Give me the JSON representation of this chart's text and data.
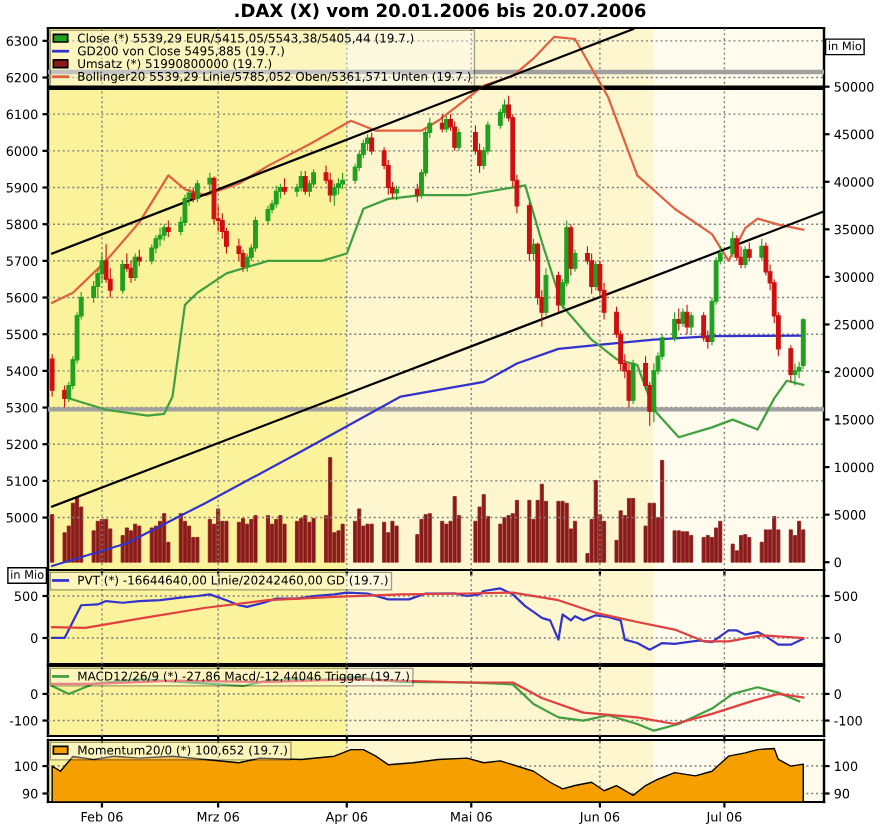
{
  "chart_data": [
    {
      "type": "candlestick",
      "title": ".DAX (X) vom 20.01.2006 bis 20.07.2006",
      "x": [
        "2006-01-20",
        "2006-01-23",
        "2006-01-24",
        "2006-01-25",
        "2006-01-26",
        "2006-01-27",
        "2006-01-30",
        "2006-01-31",
        "2006-02-01",
        "2006-02-02",
        "2006-02-03",
        "2006-02-06",
        "2006-02-07",
        "2006-02-08",
        "2006-02-09",
        "2006-02-10",
        "2006-02-13",
        "2006-02-14",
        "2006-02-15",
        "2006-02-16",
        "2006-02-17",
        "2006-02-20",
        "2006-02-21",
        "2006-02-22",
        "2006-02-23",
        "2006-02-24",
        "2006-02-27",
        "2006-02-28",
        "2006-03-01",
        "2006-03-02",
        "2006-03-03",
        "2006-03-06",
        "2006-03-07",
        "2006-03-08",
        "2006-03-09",
        "2006-03-10",
        "2006-03-13",
        "2006-03-14",
        "2006-03-15",
        "2006-03-16",
        "2006-03-17",
        "2006-03-20",
        "2006-03-21",
        "2006-03-22",
        "2006-03-23",
        "2006-03-24",
        "2006-03-27",
        "2006-03-28",
        "2006-03-29",
        "2006-03-30",
        "2006-03-31",
        "2006-04-03",
        "2006-04-04",
        "2006-04-05",
        "2006-04-06",
        "2006-04-07",
        "2006-04-10",
        "2006-04-11",
        "2006-04-12",
        "2006-04-13",
        "2006-04-18",
        "2006-04-19",
        "2006-04-20",
        "2006-04-21",
        "2006-04-24",
        "2006-04-25",
        "2006-04-26",
        "2006-04-27",
        "2006-04-28",
        "2006-05-02",
        "2006-05-03",
        "2006-05-04",
        "2006-05-05",
        "2006-05-08",
        "2006-05-09",
        "2006-05-10",
        "2006-05-11",
        "2006-05-12",
        "2006-05-15",
        "2006-05-16",
        "2006-05-17",
        "2006-05-18",
        "2006-05-19",
        "2006-05-22",
        "2006-05-23",
        "2006-05-24",
        "2006-05-25",
        "2006-05-26",
        "2006-05-29",
        "2006-05-30",
        "2006-05-31",
        "2006-06-01",
        "2006-06-02",
        "2006-06-05",
        "2006-06-06",
        "2006-06-07",
        "2006-06-08",
        "2006-06-09",
        "2006-06-12",
        "2006-06-13",
        "2006-06-14",
        "2006-06-15",
        "2006-06-16",
        "2006-06-19",
        "2006-06-20",
        "2006-06-21",
        "2006-06-22",
        "2006-06-23",
        "2006-06-26",
        "2006-06-27",
        "2006-06-28",
        "2006-06-29",
        "2006-06-30",
        "2006-07-03",
        "2006-07-04",
        "2006-07-05",
        "2006-07-06",
        "2006-07-07",
        "2006-07-10",
        "2006-07-11",
        "2006-07-12",
        "2006-07-13",
        "2006-07-14",
        "2006-07-17",
        "2006-07-18",
        "2006-07-19",
        "2006-07-20"
      ],
      "series": [
        {
          "type": "candlestick",
          "name": "Close (*) 5539,29 EUR/5415,05/5543,38/5405,44 (19.7.)",
          "color": "#1fa01f",
          "colors": [
            "#cc1010",
            "#cc1010",
            "#1fa01f",
            "#1fa01f",
            "#1fa01f",
            "#1fa01f",
            "#1fa01f",
            "#1fa01f",
            "#1fa01f",
            "#cc1010",
            "#cc1010",
            "#1fa01f",
            "#cc1010",
            "#cc1010",
            "#1fa01f",
            "#cc1010",
            "#1fa01f",
            "#1fa01f",
            "#1fa01f",
            "#1fa01f",
            "#cc1010",
            "#1fa01f",
            "#1fa01f",
            "#1fa01f",
            "#cc1010",
            "#1fa01f",
            "#1fa01f",
            "#cc1010",
            "#cc1010",
            "#cc1010",
            "#cc1010",
            "#cc1010",
            "#cc1010",
            "#1fa01f",
            "#1fa01f",
            "#1fa01f",
            "#1fa01f",
            "#1fa01f",
            "#1fa01f",
            "#1fa01f",
            "#cc1010",
            "#1fa01f",
            "#1fa01f",
            "#cc1010",
            "#1fa01f",
            "#1fa01f",
            "#cc1010",
            "#cc1010",
            "#1fa01f",
            "#1fa01f",
            "#1fa01f",
            "#1fa01f",
            "#1fa01f",
            "#1fa01f",
            "#1fa01f",
            "#cc1010",
            "#cc1010",
            "#cc1010",
            "#cc1010",
            "#1fa01f",
            "#cc1010",
            "#1fa01f",
            "#1fa01f",
            "#1fa01f",
            "#cc1010",
            "#1fa01f",
            "#cc1010",
            "#cc1010",
            "#1fa01f",
            "#cc1010",
            "#cc1010",
            "#1fa01f",
            "#1fa01f",
            "#1fa01f",
            "#1fa01f",
            "#cc1010",
            "#cc1010",
            "#cc1010",
            "#cc1010",
            "#1fa01f",
            "#cc1010",
            "#cc1010",
            "#1fa01f",
            "#cc1010",
            "#1fa01f",
            "#1fa01f",
            "#cc1010",
            "#1fa01f",
            "#cc1010",
            "#cc1010",
            "#1fa01f",
            "#cc1010",
            "#cc1010",
            "#cc1010",
            "#cc1010",
            "#cc1010",
            "#cc1010",
            "#1fa01f",
            "#cc1010",
            "#cc1010",
            "#1fa01f",
            "#1fa01f",
            "#1fa01f",
            "#1fa01f",
            "#cc1010",
            "#1fa01f",
            "#cc1010",
            "#1fa01f",
            "#cc1010",
            "#cc1010",
            "#1fa01f",
            "#1fa01f",
            "#1fa01f",
            "#1fa01f",
            "#cc1010",
            "#cc1010",
            "#1fa01f",
            "#cc1010",
            "#1fa01f",
            "#cc1010",
            "#cc1010",
            "#cc1010",
            "#cc1010",
            "#cc1010",
            "#1fa01f",
            "#1fa01f",
            "#1fa01f"
          ],
          "ohlc": [
            [
              5432,
              5445,
              5330,
              5347
            ],
            [
              5347,
              5360,
              5300,
              5325
            ],
            [
              5325,
              5370,
              5315,
              5360
            ],
            [
              5360,
              5440,
              5350,
              5430
            ],
            [
              5430,
              5560,
              5420,
              5550
            ],
            [
              5550,
              5615,
              5540,
              5600
            ],
            [
              5600,
              5645,
              5585,
              5630
            ],
            [
              5630,
              5680,
              5600,
              5665
            ],
            [
              5665,
              5720,
              5640,
              5700
            ],
            [
              5700,
              5745,
              5640,
              5650
            ],
            [
              5650,
              5680,
              5600,
              5620
            ],
            [
              5620,
              5700,
              5610,
              5690
            ],
            [
              5690,
              5720,
              5670,
              5680
            ],
            [
              5680,
              5700,
              5640,
              5655
            ],
            [
              5655,
              5720,
              5645,
              5710
            ],
            [
              5710,
              5730,
              5685,
              5700
            ],
            [
              5700,
              5745,
              5690,
              5735
            ],
            [
              5735,
              5770,
              5720,
              5760
            ],
            [
              5760,
              5790,
              5740,
              5770
            ],
            [
              5770,
              5800,
              5755,
              5790
            ],
            [
              5790,
              5810,
              5765,
              5780
            ],
            [
              5780,
              5820,
              5770,
              5805
            ],
            [
              5805,
              5880,
              5795,
              5870
            ],
            [
              5870,
              5895,
              5850,
              5885
            ],
            [
              5885,
              5900,
              5860,
              5870
            ],
            [
              5870,
              5920,
              5860,
              5910
            ],
            [
              5910,
              5940,
              5890,
              5925
            ],
            [
              5925,
              5930,
              5800,
              5815
            ],
            [
              5815,
              5850,
              5780,
              5810
            ],
            [
              5810,
              5830,
              5760,
              5780
            ],
            [
              5780,
              5790,
              5720,
              5740
            ],
            [
              5740,
              5760,
              5700,
              5720
            ],
            [
              5720,
              5730,
              5670,
              5685
            ],
            [
              5685,
              5720,
              5670,
              5710
            ],
            [
              5710,
              5745,
              5700,
              5735
            ],
            [
              5735,
              5820,
              5725,
              5810
            ],
            [
              5810,
              5850,
              5800,
              5840
            ],
            [
              5840,
              5865,
              5830,
              5855
            ],
            [
              5855,
              5905,
              5845,
              5890
            ],
            [
              5890,
              5910,
              5870,
              5900
            ],
            [
              5900,
              5925,
              5880,
              5890
            ],
            [
              5890,
              5910,
              5875,
              5900
            ],
            [
              5900,
              5945,
              5890,
              5930
            ],
            [
              5930,
              5945,
              5880,
              5890
            ],
            [
              5890,
              5920,
              5875,
              5910
            ],
            [
              5910,
              5950,
              5900,
              5940
            ],
            [
              5940,
              5960,
              5910,
              5920
            ],
            [
              5920,
              5940,
              5860,
              5880
            ],
            [
              5880,
              5910,
              5850,
              5900
            ],
            [
              5900,
              5925,
              5880,
              5910
            ],
            [
              5910,
              5940,
              5895,
              5920
            ],
            [
              5920,
              5965,
              5910,
              5955
            ],
            [
              5955,
              6000,
              5945,
              5990
            ],
            [
              5990,
              6030,
              5980,
              6020
            ],
            [
              6020,
              6045,
              6000,
              6035
            ],
            [
              6035,
              6050,
              5990,
              6000
            ],
            [
              6000,
              6010,
              5950,
              5960
            ],
            [
              5960,
              5975,
              5880,
              5900
            ],
            [
              5900,
              5915,
              5870,
              5885
            ],
            [
              5885,
              5905,
              5865,
              5895
            ],
            [
              5895,
              5910,
              5860,
              5880
            ],
            [
              5880,
              5950,
              5870,
              5940
            ],
            [
              5940,
              6060,
              5930,
              6050
            ],
            [
              6050,
              6090,
              6035,
              6075
            ],
            [
              6075,
              6100,
              6050,
              6060
            ],
            [
              6060,
              6095,
              6050,
              6085
            ],
            [
              6085,
              6100,
              6055,
              6065
            ],
            [
              6065,
              6080,
              6000,
              6010
            ],
            [
              6010,
              6060,
              6000,
              6050
            ],
            [
              6050,
              6070,
              5990,
              6000
            ],
            [
              6000,
              6020,
              5940,
              5960
            ],
            [
              5960,
              6010,
              5950,
              6000
            ],
            [
              6000,
              6080,
              5990,
              6070
            ],
            [
              6070,
              6115,
              6060,
              6105
            ],
            [
              6105,
              6140,
              6090,
              6125
            ],
            [
              6125,
              6150,
              6080,
              6090
            ],
            [
              6090,
              6100,
              5900,
              5920
            ],
            [
              5920,
              5935,
              5830,
              5850
            ],
            [
              5850,
              5860,
              5700,
              5720
            ],
            [
              5720,
              5760,
              5700,
              5745
            ],
            [
              5745,
              5750,
              5580,
              5600
            ],
            [
              5600,
              5620,
              5520,
              5560
            ],
            [
              5560,
              5680,
              5550,
              5660
            ],
            [
              5660,
              5670,
              5560,
              5580
            ],
            [
              5580,
              5650,
              5570,
              5640
            ],
            [
              5640,
              5810,
              5630,
              5790
            ],
            [
              5790,
              5800,
              5660,
              5680
            ],
            [
              5680,
              5730,
              5670,
              5720
            ],
            [
              5720,
              5740,
              5690,
              5700
            ],
            [
              5700,
              5720,
              5610,
              5630
            ],
            [
              5630,
              5700,
              5620,
              5690
            ],
            [
              5690,
              5700,
              5600,
              5620
            ],
            [
              5620,
              5640,
              5540,
              5560
            ],
            [
              5560,
              5575,
              5490,
              5500
            ],
            [
              5500,
              5510,
              5400,
              5420
            ],
            [
              5420,
              5445,
              5380,
              5400
            ],
            [
              5400,
              5420,
              5300,
              5320
            ],
            [
              5320,
              5430,
              5310,
              5420
            ],
            [
              5420,
              5440,
              5350,
              5360
            ],
            [
              5360,
              5370,
              5250,
              5290
            ],
            [
              5290,
              5420,
              5260,
              5400
            ],
            [
              5400,
              5450,
              5390,
              5440
            ],
            [
              5440,
              5500,
              5430,
              5490
            ],
            [
              5490,
              5560,
              5480,
              5540
            ],
            [
              5540,
              5570,
              5510,
              5530
            ],
            [
              5530,
              5570,
              5520,
              5560
            ],
            [
              5560,
              5580,
              5500,
              5520
            ],
            [
              5520,
              5560,
              5500,
              5550
            ],
            [
              5550,
              5560,
              5480,
              5490
            ],
            [
              5490,
              5510,
              5460,
              5480
            ],
            [
              5480,
              5600,
              5470,
              5590
            ],
            [
              5590,
              5710,
              5580,
              5700
            ],
            [
              5700,
              5740,
              5690,
              5720
            ],
            [
              5720,
              5780,
              5710,
              5760
            ],
            [
              5760,
              5770,
              5700,
              5710
            ],
            [
              5710,
              5740,
              5680,
              5690
            ],
            [
              5690,
              5740,
              5680,
              5730
            ],
            [
              5730,
              5750,
              5700,
              5710
            ],
            [
              5710,
              5760,
              5700,
              5740
            ],
            [
              5740,
              5750,
              5660,
              5670
            ],
            [
              5670,
              5690,
              5620,
              5640
            ],
            [
              5640,
              5650,
              5530,
              5550
            ],
            [
              5550,
              5560,
              5440,
              5460
            ],
            [
              5460,
              5470,
              5370,
              5390
            ],
            [
              5390,
              5420,
              5360,
              5400
            ],
            [
              5400,
              5425,
              5380,
              5410
            ],
            [
              5415.05,
              5543.38,
              5405.44,
              5539.29
            ]
          ]
        },
        {
          "type": "line",
          "name": "GD200 von Close 5495,885 (19.7.)",
          "color": "#3333cc",
          "x": [
            "2006-01-20",
            "2006-02-07",
            "2006-02-26",
            "2006-03-21",
            "2006-04-14",
            "2006-05-04",
            "2006-05-12",
            "2006-05-22",
            "2006-05-31",
            "2006-06-14",
            "2006-06-28",
            "2006-07-20"
          ],
          "values": [
            4868,
            4930,
            5040,
            5180,
            5330,
            5370,
            5420,
            5460,
            5470,
            5485,
            5495,
            5496
          ]
        },
        {
          "type": "bar",
          "name": "Umsatz (*) 51990800000 (19.7.)",
          "color": "#8b1a1a",
          "axis": "y2",
          "values": [
            5000,
            3100,
            3800,
            6200,
            6800,
            5800,
            3300,
            4300,
            4500,
            4500,
            3500,
            2800,
            3600,
            3300,
            4000,
            3800,
            3600,
            3800,
            4300,
            5100,
            2100,
            5100,
            4300,
            3800,
            2600,
            2600,
            4500,
            4000,
            5600,
            4300,
            4300,
            4200,
            4600,
            4000,
            4500,
            4900,
            4900,
            4000,
            4500,
            4900,
            4000,
            4300,
            4600,
            4900,
            4200,
            4600,
            4900,
            11000,
            3100,
            3300,
            4000,
            4300,
            5600,
            3800,
            4000,
            4000,
            4200,
            3100,
            4300,
            3800,
            2900,
            4500,
            5000,
            5100,
            4300,
            4000,
            4300,
            6900,
            4900,
            4300,
            5800,
            7100,
            4800,
            4000,
            4700,
            4900,
            5100,
            6500,
            6500,
            4500,
            6500,
            8200,
            6400,
            6400,
            6400,
            6200,
            3500,
            4300,
            900,
            4500,
            8600,
            5000,
            4300,
            2300,
            5400,
            4900,
            6700,
            6700,
            3800,
            6200,
            6200,
            4700,
            10700,
            3300,
            3300,
            3200,
            3200,
            2800,
            2600,
            2800,
            2600,
            3600,
            4300,
            1900,
            1200,
            2800,
            2900,
            2600,
            2100,
            3400,
            3400,
            4800,
            3400,
            3400,
            2800,
            4300,
            3400
          ]
        },
        {
          "type": "line",
          "name": "Bollinger20 5539,29 Linie/5785,052 Oben/5361,571 Unten (19.7.)",
          "color": "#e06040",
          "x": [
            "2006-01-20",
            "2006-01-25",
            "2006-02-02",
            "2006-02-10",
            "2006-02-17",
            "2006-02-21",
            "2006-02-26",
            "2006-03-06",
            "2006-03-13",
            "2006-03-23",
            "2006-04-02",
            "2006-04-08",
            "2006-04-19",
            "2006-04-23",
            "2006-05-04",
            "2006-05-11",
            "2006-05-16",
            "2006-05-21",
            "2006-05-26",
            "2006-06-03",
            "2006-06-10",
            "2006-06-19",
            "2006-06-28",
            "2006-07-02",
            "2006-07-06",
            "2006-07-09",
            "2006-07-14",
            "2006-07-20"
          ],
          "values": [
            5586,
            5613,
            5700,
            5805,
            5933,
            5895,
            5879,
            5911,
            5959,
            6018,
            6082,
            6055,
            6055,
            6082,
            6178,
            6204,
            6252,
            6311,
            6305,
            6146,
            5933,
            5842,
            5773,
            5700,
            5789,
            5815,
            5799,
            5785
          ]
        },
        {
          "type": "line",
          "color": "#40a040",
          "x": [
            "2006-01-24",
            "2006-02-02",
            "2006-02-12",
            "2006-02-16",
            "2006-02-18",
            "2006-02-21",
            "2006-02-24",
            "2006-03-03",
            "2006-03-13",
            "2006-03-26",
            "2006-04-01",
            "2006-04-05",
            "2006-04-11",
            "2006-04-19",
            "2006-04-30",
            "2006-05-14",
            "2006-05-18",
            "2006-05-23",
            "2006-05-30",
            "2006-06-05",
            "2006-06-10",
            "2006-06-14",
            "2006-06-20",
            "2006-06-28",
            "2006-07-03",
            "2006-07-09",
            "2006-07-13",
            "2006-07-16",
            "2006-07-20"
          ],
          "values": [
            5325,
            5294,
            5278,
            5283,
            5330,
            5580,
            5613,
            5666,
            5700,
            5700,
            5720,
            5842,
            5869,
            5879,
            5879,
            5906,
            5752,
            5576,
            5485,
            5432,
            5416,
            5294,
            5219,
            5246,
            5267,
            5240,
            5325,
            5373,
            5362
          ]
        },
        {
          "type": "line",
          "color": "#000000",
          "x": [
            "2006-01-20",
            "2006-06-09"
          ],
          "values": [
            5720,
            6332
          ]
        },
        {
          "type": "line",
          "color": "#000000",
          "x": [
            "2006-01-20",
            "2006-07-25"
          ],
          "values": [
            5030,
            5835
          ]
        }
      ],
      "xlim": [
        "2006-01-19",
        "2006-07-25"
      ],
      "xticks": [
        {
          "value": "2006-02-01",
          "label": null
        },
        {
          "value": "2006-03-01",
          "label": null
        },
        {
          "value": "2006-04-01",
          "label": null
        },
        {
          "value": "2006-05-01",
          "label": null
        },
        {
          "value": "2006-06-01",
          "label": null
        },
        {
          "value": "2006-07-01",
          "label": null
        }
      ],
      "ylim": [
        4857,
        6335
      ],
      "yticks": [
        5000,
        5100,
        5200,
        5300,
        5400,
        5500,
        5600,
        5700,
        5800,
        5900,
        6000,
        6100,
        6200,
        6300
      ],
      "y2lim": [
        -820,
        56170
      ],
      "y2ticks": [
        0,
        5000,
        10000,
        15000,
        20000,
        25000,
        30000,
        35000,
        40000,
        45000,
        50000
      ],
      "y2label": "in Mio",
      "tick_labels": "y",
      "grid": true,
      "legend": "top left",
      "ref_lines": [
        {
          "axis": "y",
          "value": 6215,
          "color": "#a0a0a0"
        },
        {
          "axis": "y",
          "value": 6172,
          "color": "#000000"
        },
        {
          "axis": "y",
          "value": 5295,
          "color": "#a0a0a0"
        }
      ],
      "bands": [
        {
          "axis": "x",
          "from": "2006-01-19",
          "to": "2006-04-01",
          "color": "#fbf29c"
        },
        {
          "axis": "x",
          "from": "2006-04-01",
          "to": "2006-06-14",
          "color": "#fdf6cf"
        },
        {
          "axis": "x",
          "from": "2006-06-14",
          "to": "2006-07-25",
          "color": "#fffcee"
        }
      ]
    },
    {
      "type": "line",
      "ylabel": "in Mio",
      "series": [
        {
          "name": "PVT (*) -16644640,00 Linie/20242460,00 GD (19.7.)",
          "color": "#3333cc",
          "x": [
            "2006-01-20",
            "2006-01-23",
            "2006-01-27",
            "2006-01-31",
            "2006-02-02",
            "2006-02-06",
            "2006-02-10",
            "2006-02-15",
            "2006-02-20",
            "2006-02-24",
            "2006-02-27",
            "2006-03-03",
            "2006-03-06",
            "2006-03-08",
            "2006-03-12",
            "2006-03-15",
            "2006-03-20",
            "2006-03-24",
            "2006-03-29",
            "2006-04-01",
            "2006-04-06",
            "2006-04-11",
            "2006-04-16",
            "2006-04-20",
            "2006-04-27",
            "2006-04-30",
            "2006-05-03",
            "2006-05-04",
            "2006-05-08",
            "2006-05-11",
            "2006-05-14",
            "2006-05-16",
            "2006-05-18",
            "2006-05-20",
            "2006-05-22",
            "2006-05-23",
            "2006-05-25",
            "2006-05-26",
            "2006-05-28",
            "2006-05-31",
            "2006-06-03",
            "2006-06-06",
            "2006-06-07",
            "2006-06-10",
            "2006-06-13",
            "2006-06-16",
            "2006-06-19",
            "2006-06-22",
            "2006-06-25",
            "2006-06-28",
            "2006-07-02",
            "2006-07-04",
            "2006-07-06",
            "2006-07-09",
            "2006-07-11",
            "2006-07-14",
            "2006-07-17",
            "2006-07-20"
          ],
          "values": [
            0,
            0,
            390,
            400,
            440,
            420,
            440,
            450,
            480,
            500,
            520,
            450,
            390,
            370,
            420,
            470,
            470,
            500,
            520,
            540,
            530,
            460,
            460,
            530,
            530,
            500,
            520,
            560,
            590,
            520,
            380,
            310,
            240,
            210,
            -20,
            280,
            210,
            260,
            210,
            270,
            250,
            210,
            -20,
            -60,
            -140,
            -60,
            -70,
            -50,
            -30,
            -50,
            90,
            90,
            40,
            70,
            20,
            -80,
            -80,
            -10
          ]
        },
        {
          "color": "#e04040",
          "x": [
            "2006-01-20",
            "2006-01-28",
            "2006-02-10",
            "2006-02-26",
            "2006-03-13",
            "2006-03-29",
            "2006-04-14",
            "2006-04-30",
            "2006-05-11",
            "2006-05-22",
            "2006-05-31",
            "2006-06-10",
            "2006-06-19",
            "2006-06-26",
            "2006-07-02",
            "2006-07-10",
            "2006-07-20"
          ],
          "values": [
            130,
            120,
            230,
            360,
            450,
            490,
            520,
            530,
            540,
            450,
            300,
            190,
            100,
            -40,
            -40,
            30,
            0
          ]
        }
      ],
      "xlim": [
        "2006-01-19",
        "2006-07-25"
      ],
      "xticks": [
        {
          "value": "2006-02-01",
          "label": null
        },
        {
          "value": "2006-03-01",
          "label": null
        },
        {
          "value": "2006-04-01",
          "label": null
        },
        {
          "value": "2006-05-01",
          "label": null
        },
        {
          "value": "2006-06-01",
          "label": null
        },
        {
          "value": "2006-07-01",
          "label": null
        }
      ],
      "ylim": [
        -310,
        810
      ],
      "yticks": [
        0,
        500
      ],
      "y2lim": [
        -310,
        810
      ],
      "y2ticks": [
        0,
        500
      ],
      "tick_labels": "y",
      "grid": true,
      "legend": "top left",
      "bands": [
        {
          "axis": "x",
          "from": "2006-01-19",
          "to": "2006-04-01",
          "color": "#fbf29c"
        },
        {
          "axis": "x",
          "from": "2006-04-01",
          "to": "2006-06-14",
          "color": "#fdf6cf"
        },
        {
          "axis": "x",
          "from": "2006-06-14",
          "to": "2006-07-25",
          "color": "#fffcee"
        }
      ]
    },
    {
      "type": "line",
      "series": [
        {
          "name": "MACD12/26/9 (*) -27,86 Macd/-12,44046 Trigger (19.7.)",
          "color": "#40a040",
          "x": [
            "2006-01-20",
            "2006-01-24",
            "2006-01-30",
            "2006-02-10",
            "2006-03-07",
            "2006-03-13",
            "2006-03-29",
            "2006-04-02",
            "2006-04-14",
            "2006-04-30",
            "2006-05-11",
            "2006-05-16",
            "2006-05-22",
            "2006-05-28",
            "2006-06-03",
            "2006-06-10",
            "2006-06-14",
            "2006-06-20",
            "2006-06-28",
            "2006-07-03",
            "2006-07-09",
            "2006-07-14",
            "2006-07-19"
          ],
          "values": [
            30,
            0,
            38,
            55,
            30,
            50,
            55,
            63,
            45,
            43,
            36,
            -38,
            -88,
            -100,
            -80,
            -113,
            -138,
            -113,
            -55,
            0,
            25,
            5,
            -28
          ]
        },
        {
          "color": "#e04040",
          "x": [
            "2006-01-20",
            "2006-01-30",
            "2006-02-18",
            "2006-03-13",
            "2006-04-02",
            "2006-04-30",
            "2006-05-11",
            "2006-05-18",
            "2006-05-28",
            "2006-06-10",
            "2006-06-19",
            "2006-06-28",
            "2006-07-08",
            "2006-07-14",
            "2006-07-20"
          ],
          "values": [
            38,
            38,
            50,
            45,
            55,
            43,
            43,
            -15,
            -70,
            -88,
            -113,
            -75,
            -25,
            0,
            -13
          ]
        }
      ],
      "xlim": [
        "2006-01-19",
        "2006-07-25"
      ],
      "xticks": [
        {
          "value": "2006-02-01",
          "label": null
        },
        {
          "value": "2006-03-01",
          "label": null
        },
        {
          "value": "2006-04-01",
          "label": null
        },
        {
          "value": "2006-05-01",
          "label": null
        },
        {
          "value": "2006-06-01",
          "label": null
        },
        {
          "value": "2006-07-01",
          "label": null
        }
      ],
      "ylim": [
        -158,
        105
      ],
      "yticks": [
        -100,
        0
      ],
      "y2lim": [
        -158,
        105
      ],
      "y2ticks": [
        -100,
        0
      ],
      "tick_labels": "y",
      "grid": true,
      "legend": "top left",
      "bands": [
        {
          "axis": "x",
          "from": "2006-01-19",
          "to": "2006-04-01",
          "color": "#fbf29c"
        },
        {
          "axis": "x",
          "from": "2006-04-01",
          "to": "2006-06-14",
          "color": "#fdf6cf"
        },
        {
          "axis": "x",
          "from": "2006-06-14",
          "to": "2006-07-25",
          "color": "#fffcee"
        }
      ]
    },
    {
      "type": "area",
      "series": [
        {
          "name": "Momentum20/0 (*) 100,652 (19.7.)",
          "color": "#f5a000",
          "x": [
            "2006-01-20",
            "2006-01-22",
            "2006-01-25",
            "2006-01-30",
            "2006-02-04",
            "2006-02-10",
            "2006-02-18",
            "2006-02-26",
            "2006-03-06",
            "2006-03-11",
            "2006-03-21",
            "2006-03-29",
            "2006-04-02",
            "2006-04-05",
            "2006-04-08",
            "2006-04-11",
            "2006-04-17",
            "2006-04-23",
            "2006-04-30",
            "2006-05-04",
            "2006-05-08",
            "2006-05-16",
            "2006-05-20",
            "2006-05-23",
            "2006-05-26",
            "2006-05-30",
            "2006-06-02",
            "2006-06-05",
            "2006-06-09",
            "2006-06-12",
            "2006-06-15",
            "2006-06-19",
            "2006-06-24",
            "2006-06-28",
            "2006-07-02",
            "2006-07-06",
            "2006-07-09",
            "2006-07-13",
            "2006-07-14",
            "2006-07-17",
            "2006-07-20"
          ],
          "values": [
            100,
            98.1,
            103.5,
            102.4,
            103.6,
            102.9,
            103.6,
            102.4,
            101.2,
            102.9,
            102.4,
            103.6,
            106,
            106,
            103.6,
            100.5,
            101.2,
            102.4,
            102.9,
            101.2,
            101.9,
            98.1,
            94.1,
            91.7,
            92.9,
            94.1,
            91,
            92.9,
            89.3,
            92.9,
            95.2,
            97.6,
            96.4,
            98.1,
            103.6,
            104.8,
            106,
            106.4,
            102.4,
            100,
            100.7
          ]
        }
      ],
      "xlim": [
        "2006-01-19",
        "2006-07-25"
      ],
      "xticks": [
        {
          "value": "2006-02-01",
          "label": "Feb 06"
        },
        {
          "value": "2006-03-01",
          "label": "Mrz 06"
        },
        {
          "value": "2006-04-01",
          "label": "Apr 06"
        },
        {
          "value": "2006-05-01",
          "label": "Mai 06"
        },
        {
          "value": "2006-06-01",
          "label": "Jun 06"
        },
        {
          "value": "2006-07-01",
          "label": "Jul 06"
        }
      ],
      "ylim": [
        86.9,
        109.5
      ],
      "yticks": [
        90,
        100
      ],
      "y2lim": [
        86.9,
        109.5
      ],
      "y2ticks": [
        90,
        100
      ],
      "grid": true,
      "legend": "top left",
      "bands": [
        {
          "axis": "x",
          "from": "2006-01-19",
          "to": "2006-04-01",
          "color": "#fbf29c"
        },
        {
          "axis": "x",
          "from": "2006-04-01",
          "to": "2006-06-14",
          "color": "#fdf6cf"
        },
        {
          "axis": "x",
          "from": "2006-06-14",
          "to": "2006-07-25",
          "color": "#fffcee"
        }
      ]
    }
  ]
}
